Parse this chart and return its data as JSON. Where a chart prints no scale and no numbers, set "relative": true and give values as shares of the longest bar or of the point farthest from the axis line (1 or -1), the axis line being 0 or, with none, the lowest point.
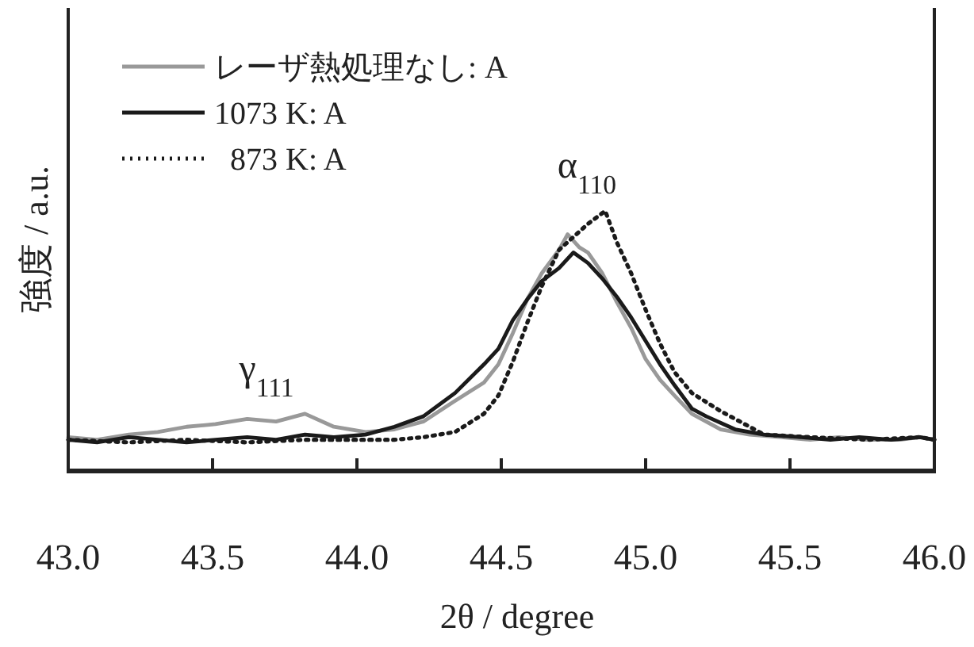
{
  "chart_data": {
    "type": "line",
    "relative": true,
    "xlabel": "2θ / degree",
    "ylabel": "強度 / a.u.",
    "xlim": [
      43.0,
      46.0
    ],
    "xticks": [
      {
        "value": 43.0,
        "label": "43.0"
      },
      {
        "value": 43.5,
        "label": "43.5"
      },
      {
        "value": 44.0,
        "label": "44.0"
      },
      {
        "value": 44.5,
        "label": "44.5"
      },
      {
        "value": 45.0,
        "label": "45.0"
      },
      {
        "value": 45.5,
        "label": "45.5"
      },
      {
        "value": 46.0,
        "label": "46.0"
      }
    ],
    "tick_labels": "x",
    "grid": false,
    "legend": "top left",
    "annotations": [
      "α$_{110}$",
      "γ$_{111}$"
    ],
    "series": [
      {
        "name": "レーザ熱処理なし: A",
        "color": "#999999",
        "line_style": "solid",
        "x": [
          43.0,
          43.1,
          43.21,
          43.31,
          43.41,
          43.51,
          43.62,
          43.72,
          43.82,
          43.92,
          44.03,
          44.13,
          44.23,
          44.34,
          44.44,
          44.49,
          44.54,
          44.59,
          44.64,
          44.7,
          44.73,
          44.77,
          44.8,
          44.85,
          44.9,
          44.95,
          45.0,
          45.05,
          45.1,
          45.16,
          45.26,
          45.36,
          45.47,
          45.57,
          45.67,
          45.77,
          45.88,
          45.95,
          46.0
        ],
        "values": [
          0.13,
          0.12,
          0.14,
          0.15,
          0.17,
          0.18,
          0.2,
          0.19,
          0.22,
          0.17,
          0.15,
          0.16,
          0.19,
          0.27,
          0.34,
          0.41,
          0.53,
          0.66,
          0.76,
          0.85,
          0.91,
          0.86,
          0.84,
          0.76,
          0.65,
          0.55,
          0.43,
          0.35,
          0.29,
          0.22,
          0.16,
          0.14,
          0.13,
          0.12,
          0.13,
          0.12,
          0.12,
          0.13,
          0.12
        ]
      },
      {
        "name": "1073 K: A",
        "color": "#1a1a1a",
        "line_style": "solid",
        "x": [
          43.0,
          43.1,
          43.21,
          43.31,
          43.41,
          43.51,
          43.62,
          43.72,
          43.82,
          43.92,
          44.03,
          44.13,
          44.23,
          44.34,
          44.44,
          44.49,
          44.54,
          44.59,
          44.64,
          44.7,
          44.75,
          44.8,
          44.85,
          44.9,
          44.95,
          45.0,
          45.05,
          45.1,
          45.16,
          45.21,
          45.31,
          45.41,
          45.54,
          45.64,
          45.74,
          45.85,
          45.95,
          46.0
        ],
        "values": [
          0.12,
          0.11,
          0.13,
          0.12,
          0.11,
          0.12,
          0.13,
          0.12,
          0.14,
          0.13,
          0.14,
          0.17,
          0.21,
          0.3,
          0.41,
          0.47,
          0.58,
          0.66,
          0.73,
          0.78,
          0.84,
          0.8,
          0.74,
          0.67,
          0.59,
          0.5,
          0.41,
          0.33,
          0.24,
          0.21,
          0.16,
          0.14,
          0.13,
          0.12,
          0.13,
          0.12,
          0.13,
          0.12
        ]
      },
      {
        "name": "873 K: A",
        "color": "#1a1a1a",
        "line_style": "dotted",
        "x": [
          43.0,
          43.21,
          43.41,
          43.62,
          43.82,
          44.03,
          44.13,
          44.23,
          44.34,
          44.44,
          44.49,
          44.54,
          44.59,
          44.64,
          44.7,
          44.75,
          44.8,
          44.86,
          44.9,
          44.95,
          45.0,
          45.05,
          45.1,
          45.16,
          45.26,
          45.41,
          45.57,
          45.77,
          45.95,
          46.0
        ],
        "values": [
          0.12,
          0.11,
          0.12,
          0.11,
          0.12,
          0.12,
          0.12,
          0.13,
          0.15,
          0.22,
          0.29,
          0.42,
          0.57,
          0.71,
          0.85,
          0.9,
          0.95,
          1.0,
          0.88,
          0.76,
          0.62,
          0.49,
          0.38,
          0.3,
          0.23,
          0.14,
          0.13,
          0.12,
          0.13,
          0.12
        ]
      }
    ]
  }
}
